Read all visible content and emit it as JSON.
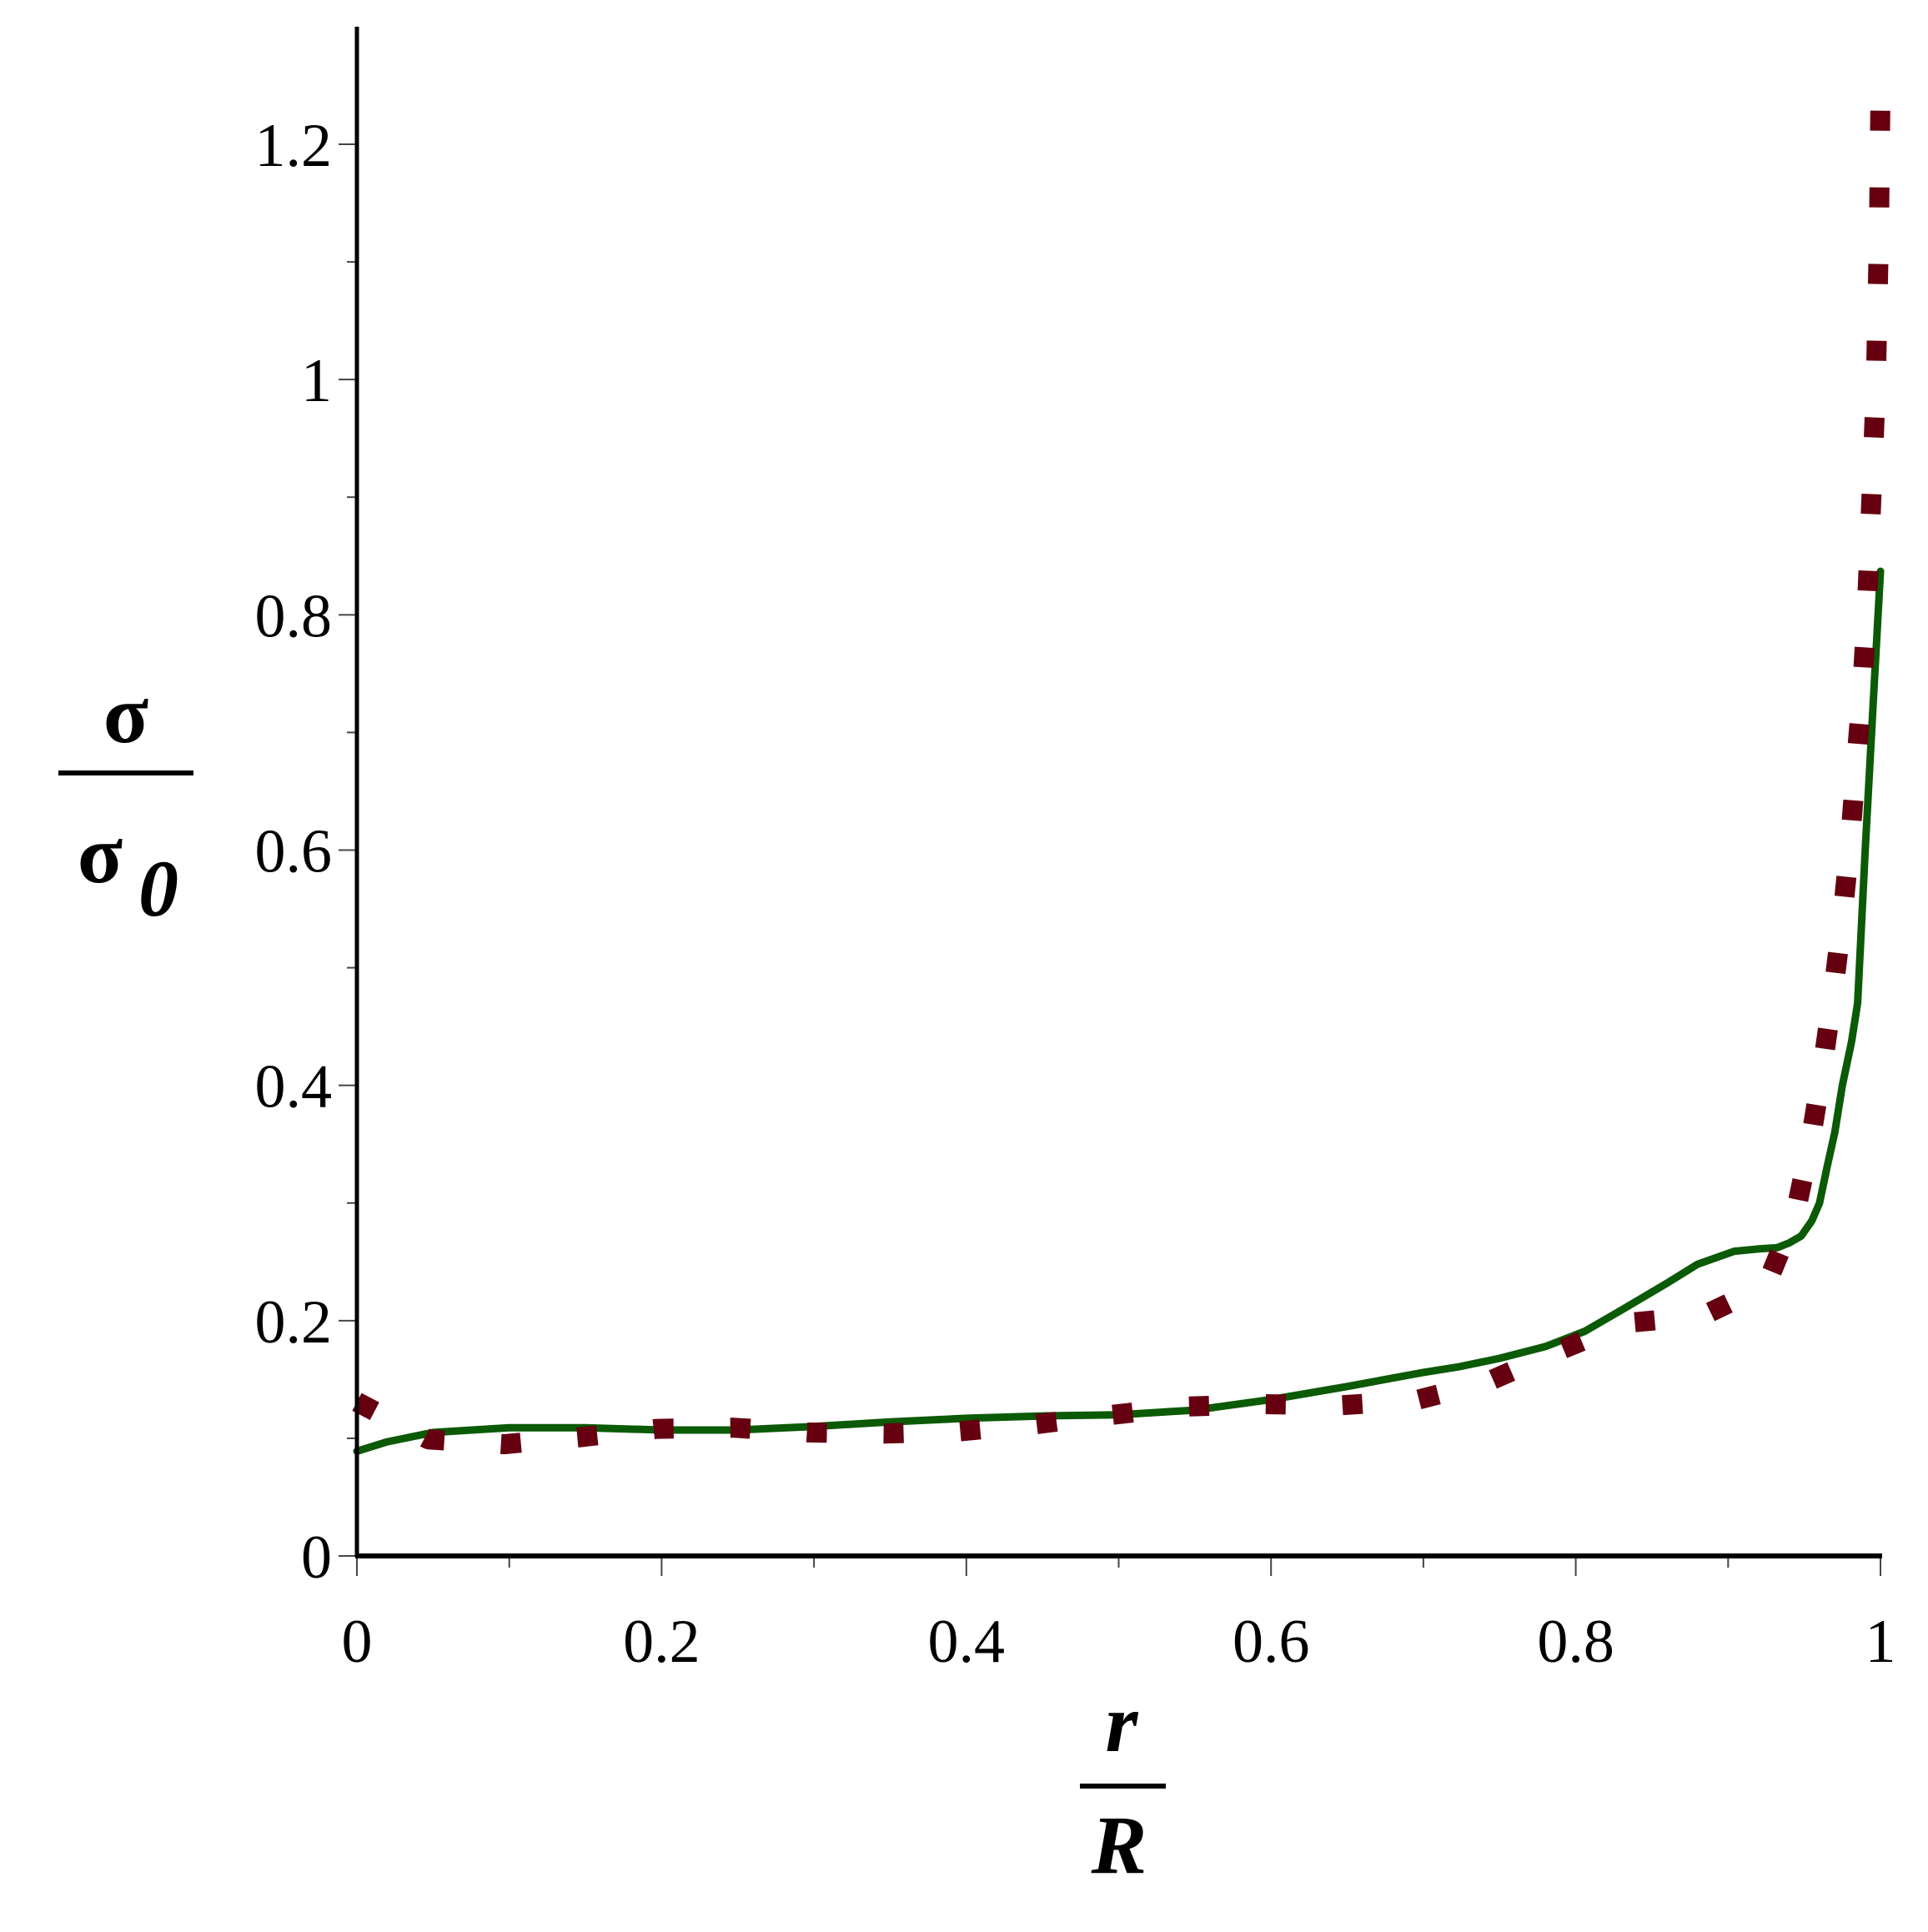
{
  "chart_data": {
    "type": "line",
    "title": "",
    "xlabel": "r / R",
    "xlabel_parts": {
      "numerator": "r",
      "denominator": "R"
    },
    "ylabel": "σ / σ0",
    "ylabel_parts": {
      "numerator": "σ",
      "denominator": "σ",
      "denominator_sub": "0"
    },
    "xlim": [
      0,
      1
    ],
    "ylim": [
      0,
      1.3
    ],
    "grid": false,
    "legend": null,
    "x_ticks": [
      0,
      0.2,
      0.4,
      0.6,
      0.8,
      1
    ],
    "x_tick_labels": [
      "0",
      "0.2",
      "0.4",
      "0.6",
      "0.8",
      "1"
    ],
    "x_minor_ticks": [
      0.1,
      0.3,
      0.5,
      0.7,
      0.9
    ],
    "y_ticks": [
      0,
      0.2,
      0.4,
      0.6,
      0.8,
      1,
      1.2
    ],
    "y_tick_labels": [
      "0",
      "0.2",
      "0.4",
      "0.6",
      "0.8",
      "1",
      "1.2"
    ],
    "y_minor_ticks": [
      0.1,
      0.3,
      0.5,
      0.7,
      0.9,
      1.1
    ],
    "series": [
      {
        "name": "solid",
        "style": "solid",
        "color": "#0b5a05",
        "x": [
          0,
          0.02,
          0.05,
          0.1,
          0.15,
          0.2,
          0.25,
          0.3,
          0.35,
          0.4,
          0.45,
          0.5,
          0.55,
          0.6,
          0.65,
          0.7,
          0.724,
          0.75,
          0.78,
          0.806,
          0.83,
          0.86,
          0.88,
          0.904,
          0.92,
          0.932,
          0.94,
          0.948,
          0.955,
          0.96,
          0.965,
          0.97,
          0.975,
          0.981,
          0.985,
          0.99,
          0.995,
          1.0
        ],
        "y": [
          0.089,
          0.097,
          0.105,
          0.109,
          0.109,
          0.107,
          0.107,
          0.11,
          0.114,
          0.117,
          0.119,
          0.12,
          0.124,
          0.133,
          0.144,
          0.156,
          0.161,
          0.168,
          0.178,
          0.191,
          0.209,
          0.232,
          0.248,
          0.259,
          0.261,
          0.262,
          0.266,
          0.272,
          0.285,
          0.3,
          0.331,
          0.36,
          0.4,
          0.437,
          0.47,
          0.6,
          0.72,
          0.837
        ]
      },
      {
        "name": "dotted",
        "style": "dot",
        "color": "#660011",
        "x": [
          0.0,
          0.047,
          0.097,
          0.147,
          0.197,
          0.247,
          0.296,
          0.346,
          0.396,
          0.446,
          0.496,
          0.545,
          0.595,
          0.645,
          0.694,
          0.742,
          0.788,
          0.833,
          0.883,
          0.925,
          0.944,
          0.954,
          0.962,
          0.969,
          0.975,
          0.98,
          0.984,
          0.988,
          0.991,
          0.993,
          0.995,
          0.997,
          0.998,
          0.999,
          1.0
        ],
        "y": [
          0.131,
          0.099,
          0.095,
          0.101,
          0.108,
          0.109,
          0.105,
          0.104,
          0.106,
          0.112,
          0.12,
          0.127,
          0.129,
          0.128,
          0.132,
          0.148,
          0.174,
          0.198,
          0.204,
          0.23,
          0.29,
          0.352,
          0.416,
          0.48,
          0.543,
          0.607,
          0.673,
          0.737,
          0.803,
          0.866,
          0.93,
          0.997,
          1.06,
          1.124,
          1.245
        ]
      }
    ]
  },
  "colors": {
    "axis": "#000000",
    "solid_series": "#0b5a05",
    "dotted_series": "#660011",
    "background": "#ffffff"
  }
}
